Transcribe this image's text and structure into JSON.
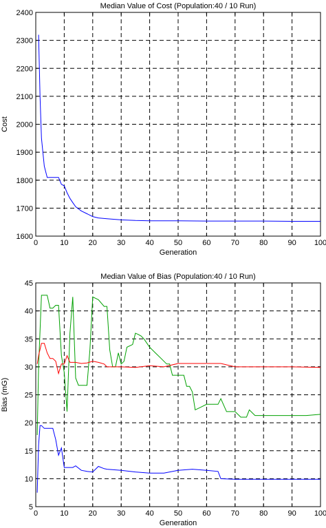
{
  "chart_data": [
    {
      "type": "line",
      "title": "Median Value of Cost (Population:40 / 10 Run)",
      "xlabel": "Generation",
      "ylabel": "Cost",
      "xlim": [
        0,
        100
      ],
      "ylim": [
        1600,
        2400
      ],
      "xticks": [
        0,
        10,
        20,
        30,
        40,
        50,
        60,
        70,
        80,
        90,
        100
      ],
      "xtick_labels": [
        "0",
        "10",
        "20",
        "30",
        "40",
        "50",
        "60",
        "70",
        "80",
        "90",
        "100"
      ],
      "yticks": [
        1600,
        1700,
        1800,
        1900,
        2000,
        2100,
        2200,
        2300,
        2400
      ],
      "ytick_labels": [
        "1600",
        "1700",
        "1800",
        "1900",
        "2000",
        "2100",
        "2200",
        "2300",
        "2400"
      ],
      "grid": true,
      "series": [
        {
          "color": "#0000ff",
          "x": [
            1,
            1.5,
            2,
            3,
            4,
            5,
            6,
            7,
            8,
            9,
            10,
            11,
            12,
            13,
            14,
            16,
            18,
            20,
            22,
            25,
            30,
            35,
            40,
            50,
            60,
            70,
            80,
            90,
            100
          ],
          "y": [
            2320,
            2100,
            1950,
            1850,
            1810,
            1810,
            1810,
            1810,
            1810,
            1785,
            1780,
            1755,
            1735,
            1720,
            1705,
            1690,
            1680,
            1670,
            1665,
            1662,
            1658,
            1656,
            1655,
            1655,
            1654,
            1654,
            1654,
            1653,
            1653
          ]
        }
      ]
    },
    {
      "type": "line",
      "title": "Median Value of Bias (Population:40 / 10 Run)",
      "xlabel": "Generation",
      "ylabel": "Bias (mG)",
      "xlim": [
        0,
        100
      ],
      "ylim": [
        5,
        45
      ],
      "xticks": [
        0,
        10,
        20,
        30,
        40,
        50,
        60,
        70,
        80,
        90,
        100
      ],
      "xtick_labels": [
        "0",
        "10",
        "20",
        "30",
        "40",
        "50",
        "60",
        "70",
        "80",
        "90",
        "100"
      ],
      "yticks": [
        5,
        10,
        15,
        20,
        25,
        30,
        35,
        40,
        45
      ],
      "ytick_labels": [
        "5",
        "10",
        "15",
        "20",
        "25",
        "30",
        "35",
        "40",
        "45"
      ],
      "grid": true,
      "series": [
        {
          "color": "#00a000",
          "x": [
            0.5,
            1,
            2,
            4,
            5,
            6,
            7,
            8,
            9,
            10,
            11,
            12,
            13,
            14,
            15,
            16,
            17,
            18,
            19,
            20,
            22,
            24,
            25,
            26,
            27,
            28,
            29,
            30,
            31,
            32,
            34,
            35,
            36,
            37,
            38,
            40,
            42,
            44,
            46,
            47,
            48,
            49,
            50,
            52,
            53,
            54,
            55,
            56,
            58,
            60,
            62,
            64,
            65,
            67,
            68,
            70,
            72,
            74,
            75,
            77,
            80,
            85,
            90,
            95,
            100
          ],
          "y": [
            17.8,
            30,
            42.8,
            42.8,
            40.5,
            40.5,
            41,
            41,
            32,
            29,
            22,
            36,
            42.5,
            28,
            26.7,
            26.7,
            26.7,
            26.7,
            33,
            42.5,
            42,
            40.8,
            40.8,
            33,
            30,
            30,
            32.5,
            30.5,
            31,
            33.5,
            34,
            36,
            35.8,
            35.5,
            35,
            33.5,
            32.5,
            31.5,
            30.5,
            30.5,
            28.5,
            28.5,
            28.5,
            28.5,
            26.5,
            26.5,
            25.5,
            22.3,
            22.8,
            23.3,
            23.3,
            23.3,
            24.3,
            22,
            22,
            22,
            21,
            21,
            22.3,
            21.3,
            21.3,
            21.3,
            21.3,
            21.3,
            21.5
          ]
        },
        {
          "color": "#ff0000",
          "x": [
            0.5,
            1,
            2,
            3,
            4,
            5,
            6,
            7,
            8,
            9,
            10,
            11,
            12,
            14,
            16,
            18,
            20,
            22,
            24,
            25,
            30,
            35,
            40,
            45,
            50,
            60,
            65,
            70,
            80,
            90,
            100
          ],
          "y": [
            30.5,
            32,
            34.2,
            34.2,
            32.5,
            31.5,
            31.5,
            31,
            28.8,
            30.5,
            30.5,
            32,
            30.8,
            30.8,
            30.6,
            30.7,
            31,
            30.8,
            30.5,
            30,
            30,
            29.9,
            30.2,
            30,
            30.6,
            30.6,
            30.6,
            30,
            30,
            30,
            29.9
          ]
        },
        {
          "color": "#0000ff",
          "x": [
            0.5,
            1,
            1.5,
            2,
            3,
            4,
            5,
            6,
            7,
            8,
            9,
            10,
            11,
            12,
            13,
            14,
            16,
            18,
            20,
            22,
            24,
            25,
            30,
            35,
            40,
            45,
            50,
            55,
            60,
            64,
            65,
            70,
            80,
            90,
            100
          ],
          "y": [
            7.5,
            16,
            19.5,
            19.5,
            19,
            19,
            19,
            19,
            17,
            14.2,
            15.5,
            12,
            12,
            12,
            12,
            12.3,
            11.5,
            11.3,
            11.2,
            12.2,
            11.8,
            11.7,
            11.5,
            11.2,
            11,
            11,
            11.5,
            11.7,
            11.5,
            11.3,
            10,
            9.9,
            9.9,
            9.9,
            9.9
          ]
        }
      ]
    }
  ]
}
